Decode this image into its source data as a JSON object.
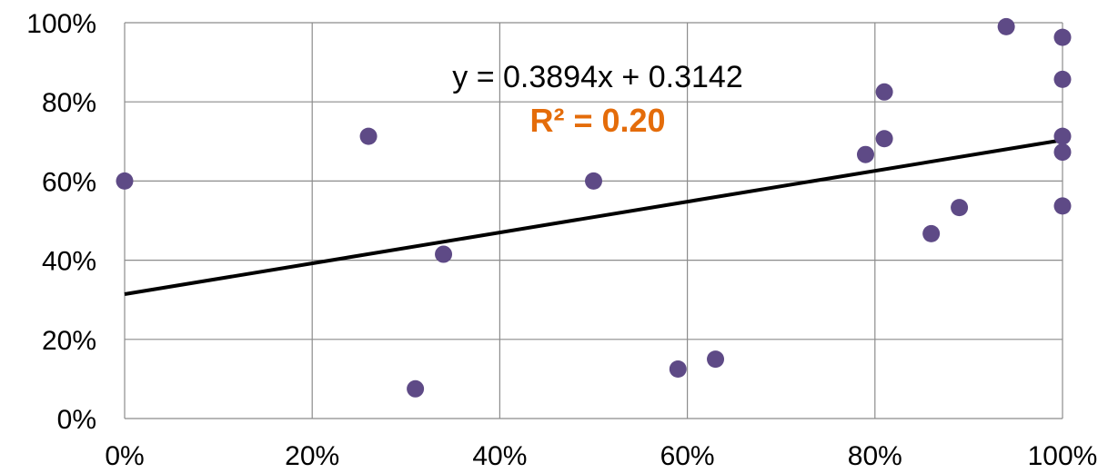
{
  "chart_data": {
    "type": "scatter",
    "title": "",
    "xlabel": "",
    "ylabel": "",
    "xlim": [
      0,
      1
    ],
    "ylim": [
      0,
      1
    ],
    "x_ticks": [
      {
        "value": 0,
        "label": "0%"
      },
      {
        "value": 0.2,
        "label": "20%"
      },
      {
        "value": 0.4,
        "label": "40%"
      },
      {
        "value": 0.6,
        "label": "60%"
      },
      {
        "value": 0.8,
        "label": "80%"
      },
      {
        "value": 1.0,
        "label": "100%"
      }
    ],
    "y_ticks": [
      {
        "value": 0,
        "label": "0%"
      },
      {
        "value": 0.2,
        "label": "20%"
      },
      {
        "value": 0.4,
        "label": "40%"
      },
      {
        "value": 0.6,
        "label": "60%"
      },
      {
        "value": 0.8,
        "label": "80%"
      },
      {
        "value": 1.0,
        "label": "100%"
      }
    ],
    "grid": true,
    "marker_color": "#5e4a86",
    "points": [
      {
        "x": 0.0,
        "y": 0.6
      },
      {
        "x": 0.26,
        "y": 0.713
      },
      {
        "x": 0.31,
        "y": 0.075
      },
      {
        "x": 0.34,
        "y": 0.415
      },
      {
        "x": 0.5,
        "y": 0.6
      },
      {
        "x": 0.59,
        "y": 0.125
      },
      {
        "x": 0.63,
        "y": 0.15
      },
      {
        "x": 0.79,
        "y": 0.667
      },
      {
        "x": 0.81,
        "y": 0.825
      },
      {
        "x": 0.81,
        "y": 0.707
      },
      {
        "x": 0.86,
        "y": 0.467
      },
      {
        "x": 0.89,
        "y": 0.533
      },
      {
        "x": 0.94,
        "y": 0.99
      },
      {
        "x": 1.0,
        "y": 0.963
      },
      {
        "x": 1.0,
        "y": 0.857
      },
      {
        "x": 1.0,
        "y": 0.713
      },
      {
        "x": 1.0,
        "y": 0.673
      },
      {
        "x": 1.0,
        "y": 0.537
      }
    ],
    "trendline": {
      "slope": 0.3894,
      "intercept": 0.3142,
      "color": "#000000",
      "equation": "y = 0.3894x + 0.3142",
      "r_squared": "R² = 0.20",
      "r_squared_color": "#e46c0a"
    }
  }
}
